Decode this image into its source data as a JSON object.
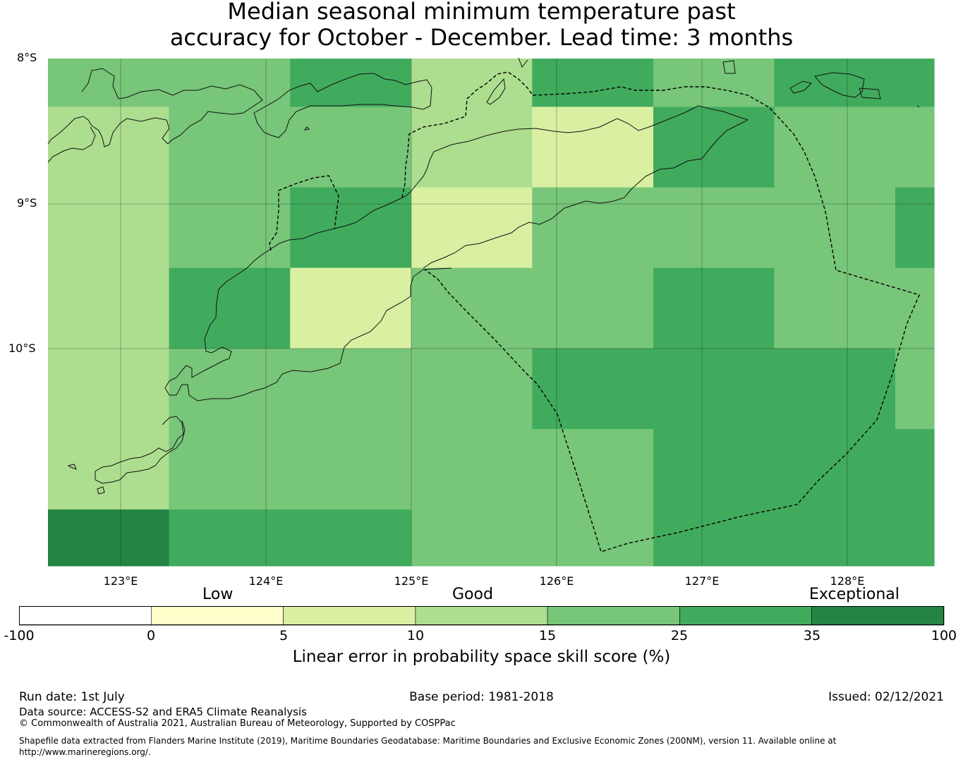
{
  "title_line1": "Median seasonal minimum temperature past",
  "title_line2": "accuracy for October - December. Lead time: 3 months",
  "map": {
    "lat_labels": [
      "8°S",
      "9°S",
      "10°S"
    ],
    "lon_labels": [
      "123°E",
      "124°E",
      "125°E",
      "126°E",
      "127°E",
      "128°E"
    ],
    "extent_lon": [
      122.5,
      128.6
    ],
    "extent_lat": [
      -8.0,
      -11.5
    ],
    "grid_cell_edges_lon": [
      122.5,
      123.333,
      124.167,
      125.0,
      125.833,
      126.667,
      127.5,
      128.333,
      128.6
    ],
    "grid_cell_edges_lat": [
      -8.0,
      -8.333,
      -8.889,
      -9.444,
      -10.0,
      -10.556,
      -11.111,
      -11.5
    ],
    "skill_classes": [
      [
        4,
        4,
        5,
        3,
        5,
        4,
        5,
        5
      ],
      [
        3,
        4,
        4,
        3,
        2,
        5,
        4,
        4
      ],
      [
        3,
        4,
        5,
        2,
        4,
        4,
        4,
        5
      ],
      [
        3,
        5,
        2,
        4,
        4,
        5,
        4,
        4
      ],
      [
        3,
        4,
        4,
        4,
        5,
        5,
        5,
        4
      ],
      [
        3,
        4,
        4,
        4,
        4,
        5,
        5,
        5
      ],
      [
        6,
        5,
        5,
        4,
        4,
        5,
        5,
        5
      ]
    ]
  },
  "colorbar": {
    "category_labels": [
      "Low",
      "Good",
      "Exceptional"
    ],
    "ticks": [
      "-100",
      "0",
      "5",
      "10",
      "15",
      "25",
      "35",
      "100"
    ],
    "colors": [
      "#ffffff",
      "#ffffcc",
      "#d9f0a3",
      "#addd8e",
      "#78c679",
      "#41ab5d",
      "#238443"
    ],
    "label": "Linear error in probability space skill score (%)"
  },
  "footer": {
    "run_date": "Run date: 1st July",
    "base_period": "Base period: 1981-2018",
    "issued": "Issued: 02/12/2021",
    "data_source": "Data source: ACCESS-S2 and ERA5 Climate Reanalysis",
    "copyright": "© Commonwealth of Australia 2021, Australian Bureau of Meteorology, Supported by COSPPac",
    "shapefile_line1": "Shapefile data extracted from Flanders Marine Institute (2019), Maritime Boundaries Geodatabase: Maritime Boundaries and Exclusive Economic Zones (200NM), version 11. Available online at",
    "shapefile_line2": "http://www.marineregions.org/."
  }
}
